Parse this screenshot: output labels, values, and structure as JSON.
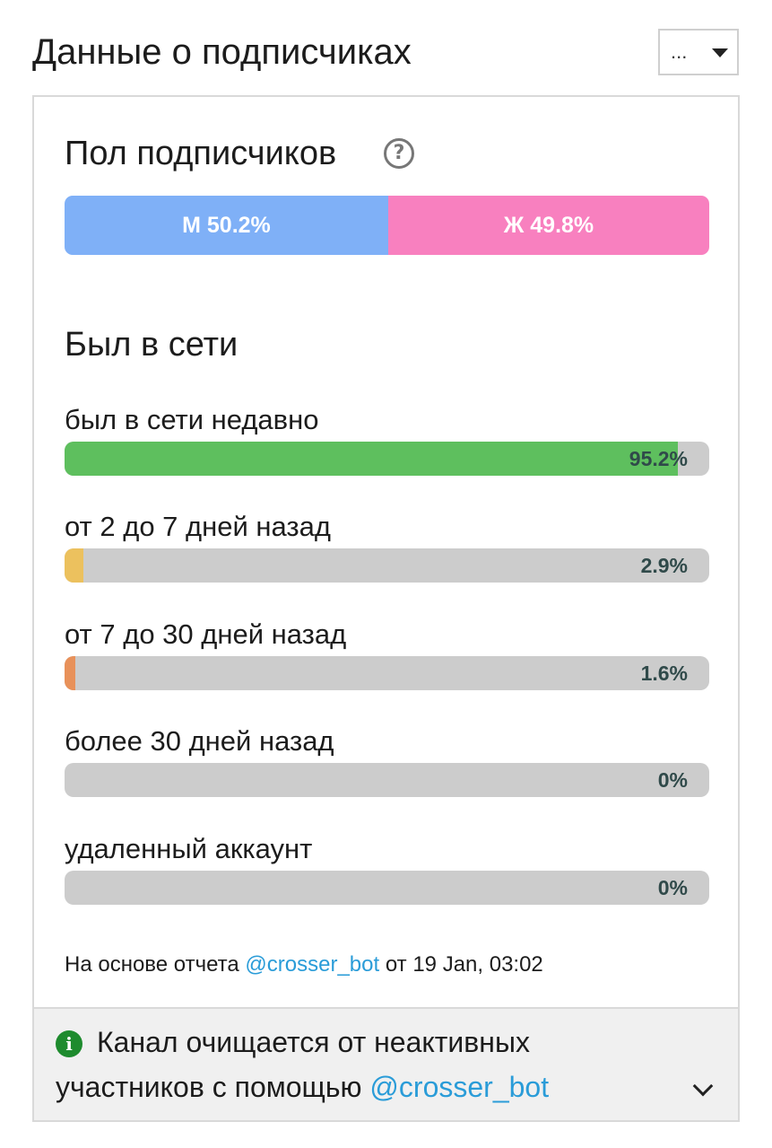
{
  "header": {
    "title": "Данные о подписчиках",
    "period_select_value": "..."
  },
  "gender": {
    "title": "Пол подписчиков",
    "help_icon": "question-circle-icon",
    "segments": [
      {
        "label": "М 50.2%",
        "share": 50.2,
        "color": "#7fb0f7"
      },
      {
        "label": "Ж 49.8%",
        "share": 49.8,
        "color": "#f880bf"
      }
    ]
  },
  "online": {
    "title": "Был в сети",
    "items": [
      {
        "label": "был в сети недавно",
        "percent_text": "95.2%",
        "value": 95.2,
        "color": "#5ebf5e"
      },
      {
        "label": "от 2 до 7 дней назад",
        "percent_text": "2.9%",
        "value": 2.9,
        "color": "#ecc15e"
      },
      {
        "label": "от 7 до 30 дней назад",
        "percent_text": "1.6%",
        "value": 1.6,
        "color": "#e8915a"
      },
      {
        "label": "более 30 дней назад",
        "percent_text": "0%",
        "value": 0,
        "color": "#cccccc"
      },
      {
        "label": "удаленный аккаунт",
        "percent_text": "0%",
        "value": 0,
        "color": "#cccccc"
      }
    ]
  },
  "report": {
    "prefix": "На основе отчета",
    "bot": "@crosser_bot",
    "suffix": "от 19 Jan, 03:02"
  },
  "info": {
    "icon": "info-circle-icon",
    "text": "Канал очищается от неактивных участников с помощью",
    "bot": "@crosser_bot",
    "expand_icon": "chevron-down-icon"
  }
}
